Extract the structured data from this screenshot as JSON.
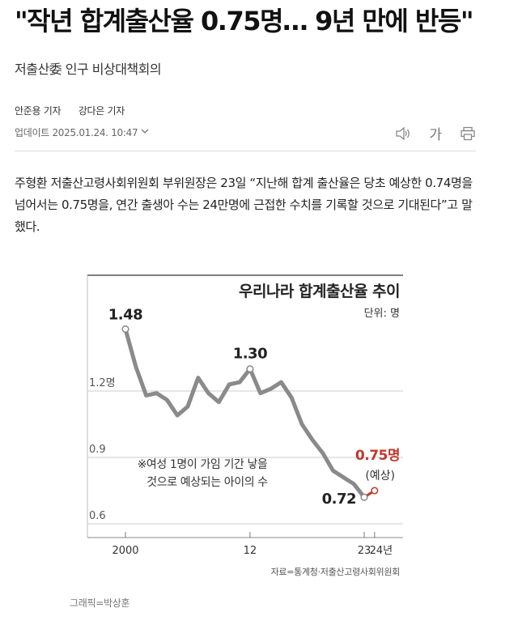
{
  "article": {
    "headline": "\"작년 합계출산율 0.75명… 9년 만에 반등\"",
    "subheadline": "저출산委 인구 비상대책회의",
    "reporters": [
      "안준용 기자",
      "강다은 기자"
    ],
    "updated": "업데이트 2025.01.24. 10:47",
    "body": "주형환 저출산고령사회위원회 부위원장은 23일 “지난해 합계 출산율은 당초 예상한 0.74명을 넘어서는 0.75명을, 연간 출생아 수는 24만명에 근접한 수치를 기록할 것으로 기대된다”고 말했다.",
    "credit": "그래픽=박상훈"
  },
  "toolbar": {
    "audio_icon": "speaker-icon",
    "font_label": "가",
    "print_icon": "print-icon"
  },
  "chart_data": {
    "type": "line",
    "title": "우리나라 합계출산율 추이",
    "unit_label": "단위: 명",
    "ylim": [
      0.6,
      1.6
    ],
    "xlim": [
      2000,
      2024
    ],
    "y_ticks": [
      {
        "value": 1.2,
        "label": "1.2명"
      },
      {
        "value": 0.9,
        "label": "0.9"
      },
      {
        "value": 0.6,
        "label": "0.6"
      }
    ],
    "x_ticks": [
      {
        "value": 2000,
        "label": "2000"
      },
      {
        "value": 2012,
        "label": "12"
      },
      {
        "value": 2023,
        "label": "23"
      },
      {
        "value": 2024,
        "label": "24년"
      }
    ],
    "series": [
      {
        "x": [
          2000,
          2001,
          2002,
          2003,
          2004,
          2005,
          2006,
          2007,
          2008,
          2009,
          2010,
          2011,
          2012,
          2013,
          2014,
          2015,
          2016,
          2017,
          2018,
          2019,
          2020,
          2021,
          2022,
          2023
        ],
        "values": [
          1.48,
          1.31,
          1.18,
          1.19,
          1.16,
          1.09,
          1.13,
          1.26,
          1.19,
          1.15,
          1.23,
          1.24,
          1.3,
          1.19,
          1.21,
          1.24,
          1.17,
          1.05,
          0.98,
          0.92,
          0.84,
          0.81,
          0.78,
          0.72
        ]
      },
      {
        "x": [
          2023,
          2024
        ],
        "values": [
          0.72,
          0.75
        ],
        "estimate": true
      }
    ],
    "annotations": {
      "start_value": "1.48",
      "peak_value": "1.30",
      "last_value": "0.72",
      "estimate_value": "0.75명",
      "estimate_label": "(예상)",
      "note_line1": "※여성 1명이 가임 기간 낳을",
      "note_line2": "것으로 예상되는 아이의 수"
    },
    "source": "자료=통계청·저출산고령사회위원회",
    "colors": {
      "line": "#8a8a8a",
      "estimate": "#c0392b",
      "grid": "#cccccc",
      "text": "#222222"
    },
    "grid": true
  }
}
